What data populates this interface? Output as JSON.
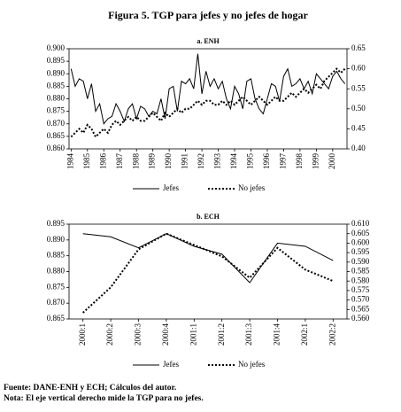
{
  "title": "Figura 5. TGP para jefes y no jefes de hogar",
  "chart_data": [
    {
      "type": "line",
      "title": "a. ENH",
      "categories": [
        "1984",
        null,
        null,
        null,
        "1985",
        null,
        null,
        null,
        "1986",
        null,
        null,
        null,
        "1987",
        null,
        null,
        null,
        "1988",
        null,
        null,
        null,
        "1989",
        null,
        null,
        null,
        "1990",
        null,
        null,
        null,
        "1991",
        null,
        null,
        null,
        "1992",
        null,
        null,
        null,
        "1993",
        null,
        null,
        null,
        "1994",
        null,
        null,
        null,
        "1995",
        null,
        null,
        null,
        "1996",
        null,
        null,
        null,
        "1997",
        null,
        null,
        null,
        "1998",
        null,
        null,
        null,
        "1999",
        null,
        null,
        null,
        "2000",
        null,
        null,
        null
      ],
      "series": [
        {
          "name": "Jefes",
          "color": "#000000",
          "dash": false,
          "values": [
            0.892,
            0.885,
            0.888,
            0.887,
            0.88,
            0.886,
            0.875,
            0.878,
            0.87,
            0.872,
            0.873,
            0.878,
            0.875,
            0.871,
            0.876,
            0.878,
            0.872,
            0.877,
            0.876,
            0.873,
            0.875,
            0.874,
            0.88,
            0.872,
            0.884,
            0.885,
            0.875,
            0.887,
            0.886,
            0.888,
            0.884,
            0.898,
            0.882,
            0.891,
            0.885,
            0.888,
            0.884,
            0.887,
            0.88,
            0.876,
            0.885,
            0.882,
            0.876,
            0.887,
            0.888,
            0.88,
            0.876,
            0.874,
            0.88,
            0.886,
            0.885,
            0.879,
            0.889,
            0.892,
            0.885,
            0.886,
            0.888,
            0.884,
            0.887,
            0.882,
            0.89,
            0.888,
            0.886,
            0.884,
            0.889,
            0.891,
            0.888,
            0.886
          ]
        },
        {
          "name": "No jefes",
          "color": "#000000",
          "dash": true,
          "axis": "y2",
          "values": [
            0.43,
            0.44,
            0.45,
            0.44,
            0.46,
            0.45,
            0.43,
            0.44,
            0.45,
            0.44,
            0.46,
            0.47,
            0.46,
            0.47,
            0.48,
            0.47,
            0.48,
            0.47,
            0.47,
            0.48,
            0.49,
            0.48,
            0.47,
            0.49,
            0.48,
            0.49,
            0.5,
            0.49,
            0.5,
            0.5,
            0.51,
            0.52,
            0.51,
            0.52,
            0.52,
            0.51,
            0.51,
            0.52,
            0.51,
            0.52,
            0.51,
            0.52,
            0.53,
            0.52,
            0.51,
            0.52,
            0.53,
            0.52,
            0.51,
            0.52,
            0.53,
            0.52,
            0.52,
            0.53,
            0.54,
            0.53,
            0.54,
            0.55,
            0.54,
            0.55,
            0.56,
            0.55,
            0.57,
            0.58,
            0.59,
            0.6,
            0.59,
            0.6
          ]
        }
      ],
      "ylim": [
        0.86,
        0.9
      ],
      "yticks": [
        {
          "value": 0.86,
          "label": "0.860"
        },
        0.865,
        {
          "value": 0.87,
          "label": "0.870"
        },
        0.875,
        {
          "value": 0.88,
          "label": "0.880"
        },
        0.885,
        {
          "value": 0.89,
          "label": "0.890"
        },
        0.895,
        {
          "value": 0.9,
          "label": "0.900"
        }
      ],
      "y2lim": [
        0.4,
        0.65
      ],
      "y2ticks": [
        {
          "value": 0.4,
          "label": "0.40"
        },
        0.45,
        {
          "value": 0.5,
          "label": "0.50"
        },
        0.55,
        {
          "value": 0.6,
          "label": "0.60"
        },
        0.65
      ],
      "legend": "bottom"
    },
    {
      "type": "line",
      "title": "b. ECH",
      "categories": [
        "2000:1",
        "2000:2",
        "2000:3",
        "2000:4",
        "2001:1",
        "2001:2",
        "2001:3",
        "2001:4",
        "2002:1",
        "2002:2"
      ],
      "series": [
        {
          "name": "Jefes",
          "color": "#000000",
          "dash": false,
          "values": [
            0.892,
            0.891,
            0.8875,
            0.892,
            0.888,
            0.8855,
            0.8765,
            0.889,
            0.888,
            0.8835
          ]
        },
        {
          "name": "No jefes",
          "color": "#000000",
          "dash": true,
          "axis": "y2",
          "values": [
            0.5633,
            0.5767,
            0.5967,
            0.605,
            0.599,
            0.593,
            0.5817,
            0.5975,
            0.586,
            0.58
          ]
        }
      ],
      "ylim": [
        0.865,
        0.895
      ],
      "yticks": [
        0.865,
        {
          "value": 0.87,
          "label": "0.870"
        },
        0.875,
        {
          "value": 0.88,
          "label": "0.880"
        },
        0.885,
        {
          "value": 0.89,
          "label": "0.890"
        },
        0.895
      ],
      "y2lim": [
        0.56,
        0.61
      ],
      "y2ticks": [
        {
          "value": 0.56,
          "label": "0.560"
        },
        0.565,
        {
          "value": 0.57,
          "label": "0.570"
        },
        0.575,
        {
          "value": 0.58,
          "label": "0.580"
        },
        0.585,
        {
          "value": 0.59,
          "label": "0.590"
        },
        0.595,
        {
          "value": 0.6,
          "label": "0.600"
        },
        0.605,
        {
          "value": 0.61,
          "label": "0.610"
        }
      ],
      "legend": "bottom"
    }
  ],
  "footnotes": [
    "Fuente: DANE-ENH y ECH; Cálculos del autor.",
    "Nota: El eje vertical derecho mide la TGP para no jefes."
  ]
}
